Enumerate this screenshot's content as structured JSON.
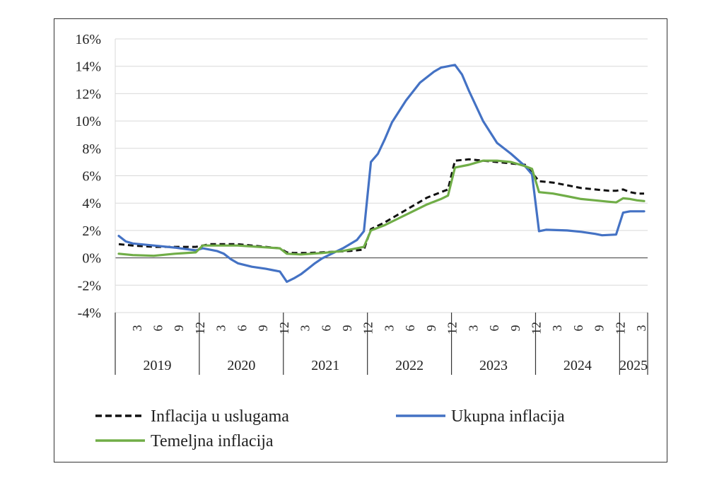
{
  "chart_data": {
    "type": "line",
    "yticks": [
      "16%",
      "14%",
      "12%",
      "10%",
      "8%",
      "6%",
      "4%",
      "2%",
      "0%",
      "-2%",
      "-4%"
    ],
    "ylim": [
      -4,
      16
    ],
    "x_month_ticks": [
      "3",
      "6",
      "9",
      "12"
    ],
    "years": [
      "2019",
      "2020",
      "2021",
      "2022",
      "2023",
      "2024",
      "2025"
    ],
    "grid": true,
    "legend_position": "bottom",
    "series": [
      {
        "name": "Inflacija u uslugama",
        "color": "#111111",
        "dash": true,
        "points": [
          [
            1,
            1.0
          ],
          [
            3,
            0.9
          ],
          [
            6,
            0.8
          ],
          [
            9,
            0.8
          ],
          [
            12,
            0.8
          ],
          [
            13,
            0.9
          ],
          [
            14,
            1.0
          ],
          [
            16,
            1.0
          ],
          [
            18,
            1.0
          ],
          [
            20,
            0.9
          ],
          [
            22,
            0.8
          ],
          [
            24,
            0.7
          ],
          [
            25,
            0.4
          ],
          [
            26,
            0.35
          ],
          [
            28,
            0.35
          ],
          [
            30,
            0.4
          ],
          [
            32,
            0.45
          ],
          [
            34,
            0.5
          ],
          [
            36,
            0.6
          ],
          [
            37,
            2.1
          ],
          [
            39,
            2.6
          ],
          [
            41,
            3.2
          ],
          [
            43,
            3.8
          ],
          [
            45,
            4.4
          ],
          [
            47,
            4.8
          ],
          [
            48,
            5.0
          ],
          [
            49,
            7.1
          ],
          [
            51,
            7.2
          ],
          [
            53,
            7.1
          ],
          [
            55,
            7.0
          ],
          [
            57,
            6.9
          ],
          [
            59,
            6.8
          ],
          [
            60,
            6.2
          ],
          [
            61,
            5.6
          ],
          [
            63,
            5.5
          ],
          [
            65,
            5.3
          ],
          [
            67,
            5.1
          ],
          [
            69,
            5.0
          ],
          [
            71,
            4.9
          ],
          [
            72,
            4.9
          ],
          [
            73,
            5.0
          ],
          [
            74,
            4.8
          ],
          [
            75,
            4.7
          ],
          [
            76,
            4.7
          ]
        ]
      },
      {
        "name": "Ukupna inflacija",
        "color": "#4472C4",
        "dash": false,
        "points": [
          [
            1,
            1.6
          ],
          [
            2,
            1.2
          ],
          [
            3,
            1.05
          ],
          [
            6,
            0.9
          ],
          [
            9,
            0.75
          ],
          [
            12,
            0.55
          ],
          [
            13,
            0.7
          ],
          [
            15,
            0.5
          ],
          [
            16,
            0.3
          ],
          [
            17,
            -0.1
          ],
          [
            18,
            -0.4
          ],
          [
            20,
            -0.65
          ],
          [
            22,
            -0.8
          ],
          [
            24,
            -1.0
          ],
          [
            25,
            -1.75
          ],
          [
            26,
            -1.5
          ],
          [
            27,
            -1.2
          ],
          [
            28,
            -0.8
          ],
          [
            29,
            -0.4
          ],
          [
            30,
            -0.05
          ],
          [
            31,
            0.2
          ],
          [
            33,
            0.7
          ],
          [
            35,
            1.3
          ],
          [
            36,
            1.95
          ],
          [
            37,
            7.0
          ],
          [
            38,
            7.6
          ],
          [
            39,
            8.7
          ],
          [
            40,
            9.9
          ],
          [
            42,
            11.5
          ],
          [
            44,
            12.8
          ],
          [
            46,
            13.6
          ],
          [
            47,
            13.9
          ],
          [
            49,
            14.1
          ],
          [
            50,
            13.4
          ],
          [
            51,
            12.2
          ],
          [
            53,
            10.0
          ],
          [
            55,
            8.4
          ],
          [
            57,
            7.6
          ],
          [
            59,
            6.7
          ],
          [
            60,
            6.1
          ],
          [
            61,
            1.95
          ],
          [
            62,
            2.05
          ],
          [
            65,
            2.0
          ],
          [
            67,
            1.9
          ],
          [
            69,
            1.75
          ],
          [
            70,
            1.65
          ],
          [
            72,
            1.7
          ],
          [
            73,
            3.3
          ],
          [
            74,
            3.4
          ],
          [
            76,
            3.4
          ]
        ]
      },
      {
        "name": "Temeljna inflacija",
        "color": "#70AD47",
        "dash": false,
        "points": [
          [
            1,
            0.3
          ],
          [
            3,
            0.2
          ],
          [
            6,
            0.15
          ],
          [
            9,
            0.3
          ],
          [
            12,
            0.4
          ],
          [
            13,
            0.9
          ],
          [
            15,
            0.9
          ],
          [
            18,
            0.9
          ],
          [
            21,
            0.8
          ],
          [
            24,
            0.7
          ],
          [
            25,
            0.3
          ],
          [
            27,
            0.25
          ],
          [
            30,
            0.35
          ],
          [
            33,
            0.5
          ],
          [
            36,
            0.8
          ],
          [
            37,
            2.0
          ],
          [
            39,
            2.4
          ],
          [
            41,
            2.9
          ],
          [
            43,
            3.4
          ],
          [
            45,
            3.9
          ],
          [
            47,
            4.3
          ],
          [
            48,
            4.55
          ],
          [
            49,
            6.6
          ],
          [
            51,
            6.8
          ],
          [
            53,
            7.1
          ],
          [
            55,
            7.1
          ],
          [
            57,
            7.0
          ],
          [
            59,
            6.7
          ],
          [
            60,
            6.5
          ],
          [
            61,
            4.8
          ],
          [
            63,
            4.7
          ],
          [
            65,
            4.5
          ],
          [
            67,
            4.3
          ],
          [
            69,
            4.2
          ],
          [
            71,
            4.1
          ],
          [
            72,
            4.05
          ],
          [
            73,
            4.35
          ],
          [
            74,
            4.3
          ],
          [
            75,
            4.2
          ],
          [
            76,
            4.15
          ]
        ]
      }
    ]
  }
}
